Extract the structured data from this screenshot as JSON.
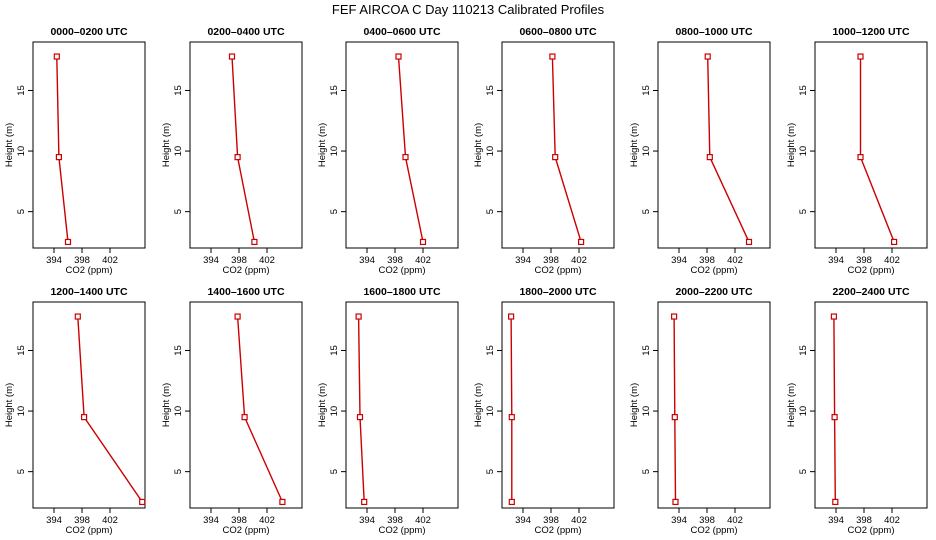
{
  "title": "FEF AIRCOA C  Day 110213  Calibrated Profiles",
  "colors": {
    "profile": "#cc0000",
    "axis": "#000000"
  },
  "chart_data": {
    "type": "line",
    "xlabel": "CO2 (ppm)",
    "ylabel": "Height (m)",
    "xlim": [
      391,
      407
    ],
    "ylim": [
      2,
      19
    ],
    "xticks": [
      394,
      398,
      402
    ],
    "yticks": [
      5,
      10,
      15
    ],
    "heights": [
      2.5,
      9.5,
      17.8
    ],
    "panels": [
      {
        "title": "0000–0200 UTC",
        "co2": [
          396.0,
          394.7,
          394.4
        ]
      },
      {
        "title": "0200–0400 UTC",
        "co2": [
          400.2,
          397.8,
          397.0
        ]
      },
      {
        "title": "0400–0600 UTC",
        "co2": [
          402.0,
          399.5,
          398.5
        ]
      },
      {
        "title": "0600–0800 UTC",
        "co2": [
          402.3,
          398.6,
          398.2
        ]
      },
      {
        "title": "0800–1000 UTC",
        "co2": [
          404.0,
          398.4,
          398.1
        ]
      },
      {
        "title": "1000–1200 UTC",
        "co2": [
          402.3,
          397.5,
          397.5
        ]
      },
      {
        "title": "1200–1400 UTC",
        "co2": [
          406.6,
          398.3,
          397.4
        ]
      },
      {
        "title": "1400–1600 UTC",
        "co2": [
          404.2,
          398.8,
          397.8
        ]
      },
      {
        "title": "1600–1800 UTC",
        "co2": [
          393.6,
          393.0,
          392.8
        ]
      },
      {
        "title": "1800–2000 UTC",
        "co2": [
          392.4,
          392.4,
          392.3
        ]
      },
      {
        "title": "2000–2200 UTC",
        "co2": [
          393.5,
          393.4,
          393.3
        ]
      },
      {
        "title": "2200–2400 UTC",
        "co2": [
          393.9,
          393.8,
          393.7
        ]
      }
    ]
  }
}
